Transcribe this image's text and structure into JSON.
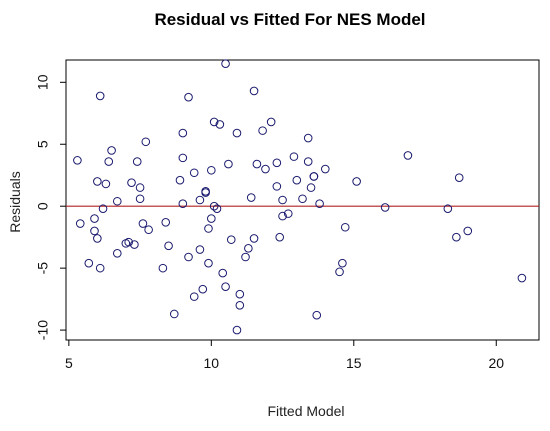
{
  "chart_data": {
    "type": "scatter",
    "title": "Residual vs Fitted For NES Model",
    "xlabel": "Fitted Model",
    "ylabel": "Residuals",
    "xlim": [
      4.9,
      21.5
    ],
    "ylim": [
      -10.8,
      11.8
    ],
    "x_ticks": [
      5,
      10,
      15,
      20
    ],
    "y_ticks": [
      -10,
      -5,
      0,
      5,
      10
    ],
    "x_tick_labels": [
      "5",
      "10",
      "15",
      "20"
    ],
    "y_tick_labels": [
      "-10",
      "-5",
      "0",
      "5",
      "10"
    ],
    "reference_line": {
      "y": 0,
      "color": "#b22222"
    },
    "marker_color": "#1a1a6e",
    "grid": false,
    "points": [
      [
        5.3,
        3.7
      ],
      [
        5.4,
        -1.4
      ],
      [
        5.7,
        -4.6
      ],
      [
        5.9,
        -1.0
      ],
      [
        5.9,
        -2.0
      ],
      [
        6.0,
        2.0
      ],
      [
        6.0,
        -2.6
      ],
      [
        6.1,
        8.9
      ],
      [
        6.1,
        -5.0
      ],
      [
        6.2,
        -0.2
      ],
      [
        6.3,
        1.8
      ],
      [
        6.4,
        3.6
      ],
      [
        6.5,
        4.5
      ],
      [
        6.7,
        0.4
      ],
      [
        6.7,
        -3.8
      ],
      [
        7.0,
        -3.0
      ],
      [
        7.1,
        -2.9
      ],
      [
        7.2,
        1.9
      ],
      [
        7.3,
        -3.1
      ],
      [
        7.4,
        3.6
      ],
      [
        7.5,
        1.5
      ],
      [
        7.5,
        0.6
      ],
      [
        7.6,
        -1.4
      ],
      [
        7.7,
        5.2
      ],
      [
        7.8,
        -1.9
      ],
      [
        8.3,
        -5.0
      ],
      [
        8.4,
        -1.3
      ],
      [
        8.5,
        -3.2
      ],
      [
        8.7,
        -8.7
      ],
      [
        8.9,
        2.1
      ],
      [
        9.0,
        0.2
      ],
      [
        9.0,
        5.9
      ],
      [
        9.0,
        3.9
      ],
      [
        9.2,
        8.8
      ],
      [
        9.2,
        -4.1
      ],
      [
        9.4,
        2.7
      ],
      [
        9.4,
        -7.3
      ],
      [
        9.6,
        -3.5
      ],
      [
        9.6,
        0.5
      ],
      [
        9.7,
        -6.7
      ],
      [
        9.8,
        1.2
      ],
      [
        9.8,
        1.1
      ],
      [
        9.9,
        -1.8
      ],
      [
        9.9,
        -4.6
      ],
      [
        10.0,
        2.9
      ],
      [
        10.0,
        -1.0
      ],
      [
        10.1,
        6.8
      ],
      [
        10.1,
        0.0
      ],
      [
        10.2,
        -0.2
      ],
      [
        10.3,
        6.6
      ],
      [
        10.4,
        -5.4
      ],
      [
        10.5,
        11.5
      ],
      [
        10.5,
        -6.5
      ],
      [
        10.6,
        3.4
      ],
      [
        10.7,
        -2.7
      ],
      [
        10.9,
        5.9
      ],
      [
        10.9,
        -10.0
      ],
      [
        11.0,
        -8.0
      ],
      [
        11.0,
        -7.1
      ],
      [
        11.2,
        -4.1
      ],
      [
        11.3,
        -3.4
      ],
      [
        11.4,
        0.7
      ],
      [
        11.5,
        9.3
      ],
      [
        11.5,
        -2.6
      ],
      [
        11.6,
        3.4
      ],
      [
        11.8,
        6.1
      ],
      [
        11.9,
        3.0
      ],
      [
        12.1,
        6.8
      ],
      [
        12.3,
        3.5
      ],
      [
        12.3,
        1.6
      ],
      [
        12.4,
        -2.5
      ],
      [
        12.5,
        0.5
      ],
      [
        12.5,
        -0.8
      ],
      [
        12.7,
        -0.6
      ],
      [
        12.9,
        4.0
      ],
      [
        13.0,
        2.1
      ],
      [
        13.2,
        0.6
      ],
      [
        13.4,
        5.5
      ],
      [
        13.4,
        3.6
      ],
      [
        13.5,
        1.5
      ],
      [
        13.6,
        2.4
      ],
      [
        13.6,
        2.4
      ],
      [
        13.7,
        -8.8
      ],
      [
        13.8,
        0.2
      ],
      [
        14.0,
        3.0
      ],
      [
        14.5,
        -5.3
      ],
      [
        14.6,
        -4.6
      ],
      [
        14.7,
        -1.7
      ],
      [
        15.1,
        2.0
      ],
      [
        16.1,
        -0.1
      ],
      [
        16.9,
        4.1
      ],
      [
        18.3,
        -0.2
      ],
      [
        18.6,
        -2.5
      ],
      [
        18.7,
        2.3
      ],
      [
        19.0,
        -2.0
      ],
      [
        20.9,
        -5.8
      ]
    ]
  }
}
